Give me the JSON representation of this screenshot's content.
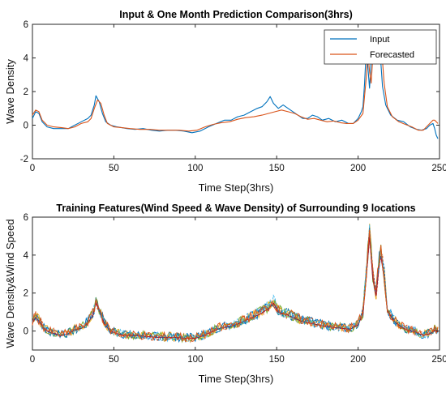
{
  "chart_data": [
    {
      "type": "line",
      "title": "Input & One Month Prediction Comparison(3hrs)",
      "xlabel": "Time Step(3hrs)",
      "ylabel": "Wave Density",
      "xlim": [
        0,
        250
      ],
      "ylim": [
        -2,
        6
      ],
      "xticks": [
        0,
        50,
        100,
        150,
        200,
        250
      ],
      "yticks": [
        -2,
        0,
        2,
        4,
        6
      ],
      "grid": false,
      "legend_position": "top-right",
      "series": [
        {
          "name": "Input",
          "color": "#0072BD",
          "points": [
            [
              0,
              0.4
            ],
            [
              2,
              0.8
            ],
            [
              4,
              0.7
            ],
            [
              6,
              0.2
            ],
            [
              9,
              -0.1
            ],
            [
              13,
              -0.2
            ],
            [
              18,
              -0.2
            ],
            [
              22,
              -0.2
            ],
            [
              26,
              0.0
            ],
            [
              30,
              0.2
            ],
            [
              34,
              0.4
            ],
            [
              36,
              0.6
            ],
            [
              38,
              1.2
            ],
            [
              39,
              1.75
            ],
            [
              41,
              1.4
            ],
            [
              43,
              0.7
            ],
            [
              45,
              0.2
            ],
            [
              48,
              0.0
            ],
            [
              52,
              -0.1
            ],
            [
              58,
              -0.2
            ],
            [
              63,
              -0.25
            ],
            [
              68,
              -0.2
            ],
            [
              73,
              -0.3
            ],
            [
              78,
              -0.35
            ],
            [
              83,
              -0.3
            ],
            [
              88,
              -0.3
            ],
            [
              93,
              -0.35
            ],
            [
              98,
              -0.45
            ],
            [
              103,
              -0.35
            ],
            [
              108,
              -0.1
            ],
            [
              113,
              0.1
            ],
            [
              118,
              0.3
            ],
            [
              122,
              0.3
            ],
            [
              126,
              0.5
            ],
            [
              130,
              0.6
            ],
            [
              134,
              0.8
            ],
            [
              138,
              1.0
            ],
            [
              141,
              1.1
            ],
            [
              144,
              1.4
            ],
            [
              146,
              1.7
            ],
            [
              148,
              1.3
            ],
            [
              151,
              1.0
            ],
            [
              154,
              1.2
            ],
            [
              157,
              1.0
            ],
            [
              160,
              0.8
            ],
            [
              163,
              0.6
            ],
            [
              166,
              0.4
            ],
            [
              169,
              0.4
            ],
            [
              172,
              0.6
            ],
            [
              175,
              0.5
            ],
            [
              178,
              0.3
            ],
            [
              182,
              0.4
            ],
            [
              186,
              0.2
            ],
            [
              190,
              0.3
            ],
            [
              194,
              0.1
            ],
            [
              197,
              0.1
            ],
            [
              200,
              0.4
            ],
            [
              202,
              0.8
            ],
            [
              203,
              1.1
            ],
            [
              204,
              2.5
            ],
            [
              205,
              4.5
            ],
            [
              206,
              3.5
            ],
            [
              207,
              2.2
            ],
            [
              208,
              3.8
            ],
            [
              209,
              5.4
            ],
            [
              210,
              4.6
            ],
            [
              211,
              3.9
            ],
            [
              212,
              4.8
            ],
            [
              213,
              5.0
            ],
            [
              214,
              3.7
            ],
            [
              215,
              2.3
            ],
            [
              217,
              1.2
            ],
            [
              220,
              0.6
            ],
            [
              224,
              0.3
            ],
            [
              228,
              0.2
            ],
            [
              232,
              -0.1
            ],
            [
              236,
              -0.25
            ],
            [
              239,
              -0.3
            ],
            [
              242,
              -0.2
            ],
            [
              244,
              0.0
            ],
            [
              246,
              0.1
            ],
            [
              247,
              -0.2
            ],
            [
              248,
              -0.6
            ],
            [
              249,
              -0.8
            ]
          ]
        },
        {
          "name": "Forecasted",
          "color": "#D95319",
          "points": [
            [
              0,
              0.6
            ],
            [
              2,
              0.9
            ],
            [
              4,
              0.8
            ],
            [
              6,
              0.3
            ],
            [
              9,
              0.0
            ],
            [
              13,
              -0.1
            ],
            [
              18,
              -0.15
            ],
            [
              22,
              -0.2
            ],
            [
              26,
              -0.1
            ],
            [
              30,
              0.1
            ],
            [
              34,
              0.2
            ],
            [
              36,
              0.4
            ],
            [
              38,
              1.0
            ],
            [
              40,
              1.5
            ],
            [
              42,
              1.3
            ],
            [
              44,
              0.6
            ],
            [
              46,
              0.1
            ],
            [
              50,
              -0.1
            ],
            [
              55,
              -0.15
            ],
            [
              60,
              -0.2
            ],
            [
              66,
              -0.25
            ],
            [
              72,
              -0.25
            ],
            [
              78,
              -0.3
            ],
            [
              84,
              -0.3
            ],
            [
              90,
              -0.3
            ],
            [
              96,
              -0.35
            ],
            [
              101,
              -0.3
            ],
            [
              106,
              -0.1
            ],
            [
              111,
              0.05
            ],
            [
              116,
              0.15
            ],
            [
              121,
              0.2
            ],
            [
              126,
              0.35
            ],
            [
              131,
              0.45
            ],
            [
              136,
              0.5
            ],
            [
              141,
              0.6
            ],
            [
              145,
              0.7
            ],
            [
              149,
              0.8
            ],
            [
              153,
              0.9
            ],
            [
              157,
              0.8
            ],
            [
              161,
              0.7
            ],
            [
              165,
              0.5
            ],
            [
              169,
              0.35
            ],
            [
              173,
              0.4
            ],
            [
              177,
              0.3
            ],
            [
              181,
              0.2
            ],
            [
              185,
              0.25
            ],
            [
              189,
              0.15
            ],
            [
              193,
              0.1
            ],
            [
              197,
              0.1
            ],
            [
              200,
              0.3
            ],
            [
              203,
              0.7
            ],
            [
              205,
              2.8
            ],
            [
              206,
              4.3
            ],
            [
              207,
              3.2
            ],
            [
              208,
              2.5
            ],
            [
              209,
              4.0
            ],
            [
              210,
              5.5
            ],
            [
              211,
              4.8
            ],
            [
              212,
              4.0
            ],
            [
              213,
              4.4
            ],
            [
              214,
              4.9
            ],
            [
              215,
              3.8
            ],
            [
              216,
              2.5
            ],
            [
              218,
              1.1
            ],
            [
              221,
              0.5
            ],
            [
              225,
              0.2
            ],
            [
              229,
              0.05
            ],
            [
              233,
              -0.1
            ],
            [
              237,
              -0.3
            ],
            [
              240,
              -0.3
            ],
            [
              242,
              -0.1
            ],
            [
              244,
              0.1
            ],
            [
              246,
              0.3
            ],
            [
              247,
              0.3
            ],
            [
              248,
              0.2
            ],
            [
              249,
              0.1
            ]
          ]
        }
      ]
    },
    {
      "type": "line",
      "title": "Training Features(Wind Speed & Wave Density) of Surrounding 9 locations",
      "xlabel": "Time Step(3hrs)",
      "ylabel": "Wave Density&Wind Speed",
      "xlim": [
        0,
        250
      ],
      "ylim": [
        -1,
        6
      ],
      "xticks": [
        0,
        50,
        100,
        150,
        200,
        250
      ],
      "yticks": [
        0,
        2,
        4,
        6
      ],
      "grid": false,
      "colors": [
        "#0072BD",
        "#D95319",
        "#EDB120",
        "#7E2F8E",
        "#77AC30",
        "#4DBEEE",
        "#A2142F",
        "#0072BD",
        "#D95319"
      ],
      "base_points": [
        [
          0,
          0.5
        ],
        [
          2,
          0.8
        ],
        [
          4,
          0.6
        ],
        [
          7,
          0.2
        ],
        [
          10,
          0.0
        ],
        [
          14,
          -0.1
        ],
        [
          18,
          -0.2
        ],
        [
          22,
          -0.1
        ],
        [
          26,
          0.1
        ],
        [
          30,
          0.2
        ],
        [
          34,
          0.5
        ],
        [
          37,
          0.9
        ],
        [
          39,
          1.6
        ],
        [
          41,
          1.2
        ],
        [
          44,
          0.5
        ],
        [
          47,
          0.1
        ],
        [
          52,
          -0.1
        ],
        [
          58,
          -0.2
        ],
        [
          64,
          -0.2
        ],
        [
          70,
          -0.25
        ],
        [
          76,
          -0.3
        ],
        [
          82,
          -0.3
        ],
        [
          88,
          -0.3
        ],
        [
          94,
          -0.35
        ],
        [
          100,
          -0.35
        ],
        [
          105,
          -0.2
        ],
        [
          110,
          0.0
        ],
        [
          115,
          0.2
        ],
        [
          120,
          0.3
        ],
        [
          125,
          0.4
        ],
        [
          130,
          0.6
        ],
        [
          135,
          0.8
        ],
        [
          140,
          1.0
        ],
        [
          145,
          1.3
        ],
        [
          148,
          1.6
        ],
        [
          151,
          1.1
        ],
        [
          155,
          1.0
        ],
        [
          160,
          0.8
        ],
        [
          165,
          0.6
        ],
        [
          170,
          0.5
        ],
        [
          175,
          0.4
        ],
        [
          180,
          0.3
        ],
        [
          185,
          0.25
        ],
        [
          190,
          0.2
        ],
        [
          195,
          0.15
        ],
        [
          200,
          0.4
        ],
        [
          203,
          1.0
        ],
        [
          205,
          3.0
        ],
        [
          207,
          5.3
        ],
        [
          209,
          3.0
        ],
        [
          211,
          2.0
        ],
        [
          213,
          3.8
        ],
        [
          214,
          4.2
        ],
        [
          216,
          3.0
        ],
        [
          218,
          1.2
        ],
        [
          222,
          0.6
        ],
        [
          226,
          0.3
        ],
        [
          230,
          0.1
        ],
        [
          235,
          0.0
        ],
        [
          240,
          -0.2
        ],
        [
          244,
          -0.1
        ],
        [
          247,
          0.1
        ],
        [
          249,
          0.0
        ]
      ]
    }
  ]
}
